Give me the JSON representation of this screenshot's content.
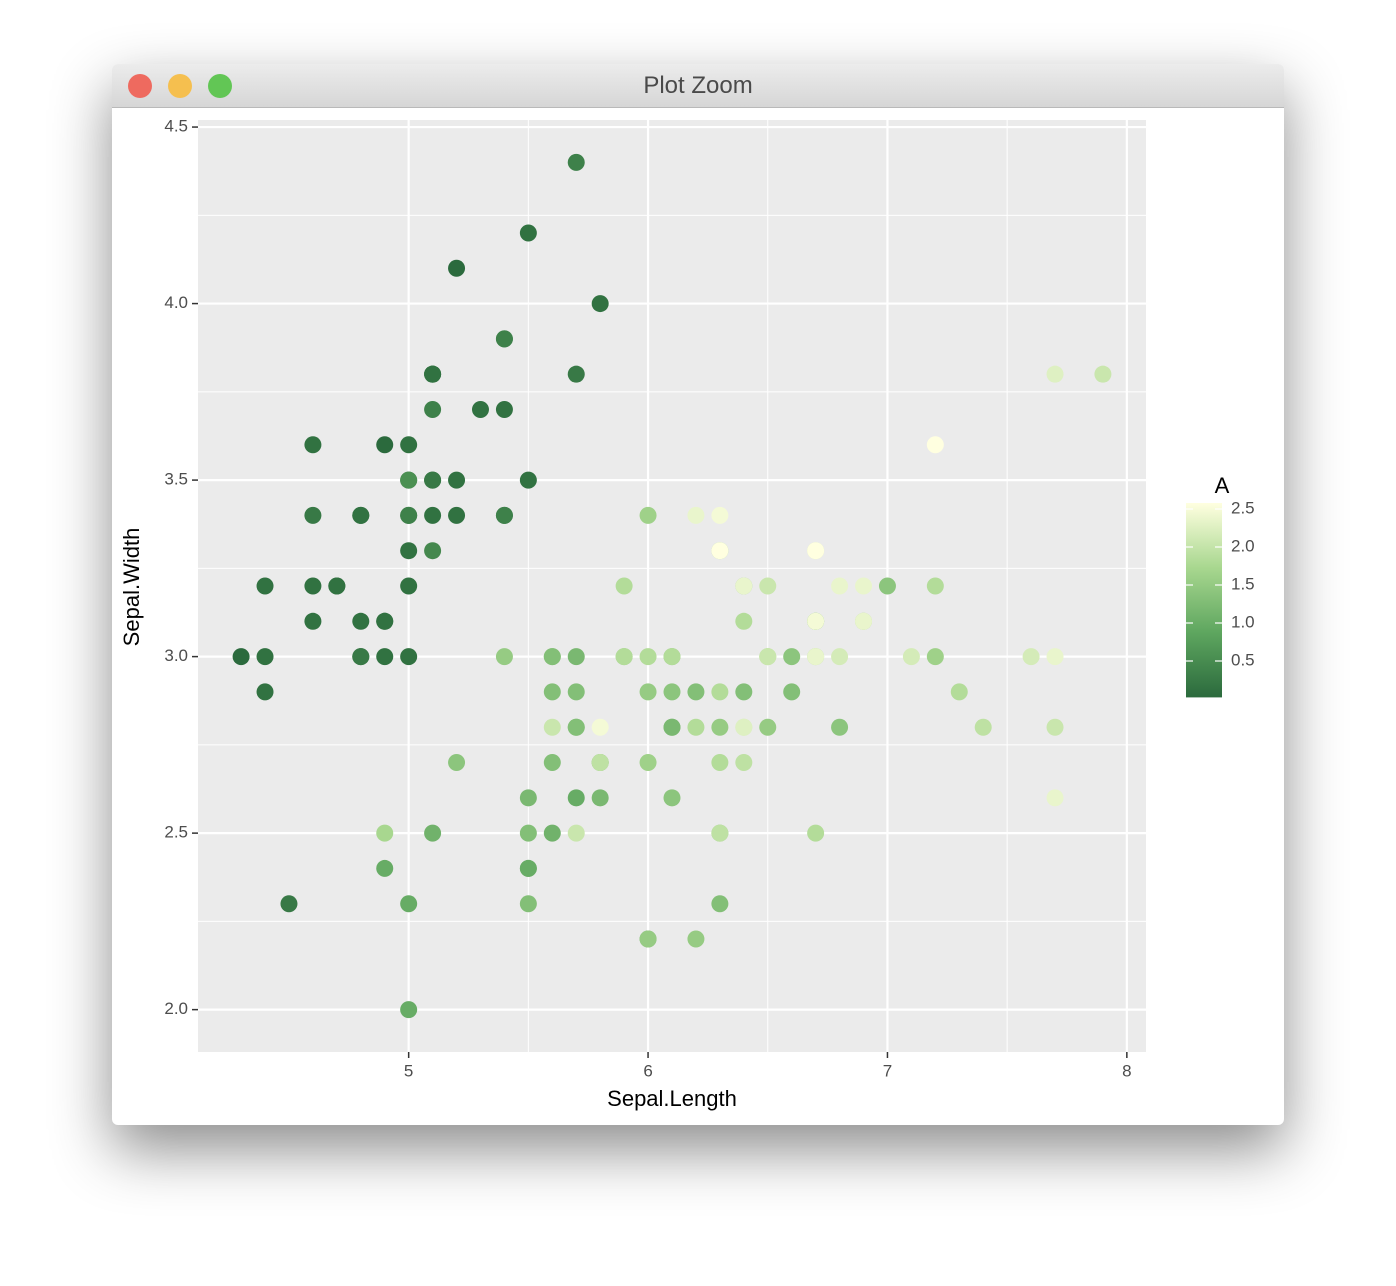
{
  "window": {
    "title": "Plot Zoom"
  },
  "chart_data": {
    "type": "scatter",
    "x_label": "Sepal.Length",
    "y_label": "Sepal.Width",
    "color_label": "A",
    "colorscale": [
      "#2b6a3d",
      "#5ea65f",
      "#a8d78f",
      "#ffffe0"
    ],
    "xlim": [
      4.12,
      8.08
    ],
    "ylim": [
      1.88,
      4.52
    ],
    "xticks": [
      5,
      6,
      7,
      8
    ],
    "yticks": [
      {
        "value": 2,
        "label": "2.0"
      },
      2.5,
      {
        "value": 3,
        "label": "3.0"
      },
      3.5,
      {
        "value": 4,
        "label": "4.0"
      },
      4.5
    ],
    "colorticks": [
      0.5,
      {
        "value": 1,
        "label": "1.0"
      },
      1.5,
      {
        "value": 2,
        "label": "2.0"
      },
      2.5
    ],
    "grid": true,
    "x": [
      5.1,
      4.9,
      4.7,
      4.6,
      5.0,
      5.4,
      4.6,
      5.0,
      4.4,
      4.9,
      5.4,
      4.8,
      4.8,
      4.3,
      5.8,
      5.7,
      5.4,
      5.1,
      5.7,
      5.1,
      5.4,
      5.1,
      4.6,
      5.1,
      4.8,
      5.0,
      5.0,
      5.2,
      5.2,
      4.7,
      4.8,
      5.4,
      5.2,
      5.5,
      4.9,
      5.0,
      5.5,
      4.9,
      4.4,
      5.1,
      5.0,
      4.5,
      4.4,
      5.0,
      5.1,
      4.8,
      5.1,
      4.6,
      5.3,
      5.0,
      7.0,
      6.4,
      6.9,
      5.5,
      6.5,
      5.7,
      6.3,
      4.9,
      6.6,
      5.2,
      5.0,
      5.9,
      6.0,
      6.1,
      5.6,
      6.7,
      5.6,
      5.8,
      6.2,
      5.6,
      5.9,
      6.1,
      6.3,
      6.1,
      6.4,
      6.6,
      6.8,
      6.7,
      6.0,
      5.7,
      5.5,
      5.5,
      5.8,
      6.0,
      5.4,
      6.0,
      6.7,
      6.3,
      5.6,
      5.5,
      5.5,
      6.1,
      5.8,
      5.0,
      5.6,
      5.7,
      5.7,
      6.2,
      5.1,
      5.7,
      6.3,
      5.8,
      7.1,
      6.3,
      6.5,
      7.6,
      4.9,
      7.3,
      6.7,
      7.2,
      6.5,
      6.4,
      6.8,
      5.7,
      5.8,
      6.4,
      6.5,
      7.7,
      7.7,
      6.0,
      6.9,
      5.6,
      7.7,
      6.3,
      6.7,
      7.2,
      6.2,
      6.1,
      6.4,
      7.2,
      7.4,
      7.9,
      6.4,
      6.3,
      6.1,
      7.7,
      6.3,
      6.4,
      6.0,
      6.9,
      6.7,
      6.9,
      5.8,
      6.8,
      6.7,
      6.7,
      6.3,
      6.5,
      6.2,
      5.9
    ],
    "values": [
      3.5,
      3.0,
      3.2,
      3.1,
      3.6,
      3.9,
      3.4,
      3.4,
      2.9,
      3.1,
      3.7,
      3.4,
      3.0,
      3.0,
      4.0,
      4.4,
      3.9,
      3.5,
      3.8,
      3.8,
      3.4,
      3.7,
      3.6,
      3.3,
      3.4,
      3.0,
      3.4,
      3.5,
      3.4,
      3.2,
      3.1,
      3.4,
      4.1,
      4.2,
      3.1,
      3.2,
      3.5,
      3.6,
      3.0,
      3.4,
      3.5,
      2.3,
      3.2,
      3.5,
      3.8,
      3.0,
      3.8,
      3.2,
      3.7,
      3.3,
      3.2,
      3.2,
      3.1,
      2.3,
      2.8,
      2.8,
      3.3,
      2.4,
      2.9,
      2.7,
      2.0,
      3.0,
      2.2,
      2.9,
      2.9,
      3.1,
      3.0,
      2.7,
      2.2,
      2.5,
      3.2,
      2.8,
      2.5,
      2.8,
      2.9,
      3.0,
      2.8,
      3.0,
      2.9,
      2.6,
      2.4,
      2.4,
      2.7,
      2.7,
      3.0,
      3.4,
      3.1,
      2.3,
      3.0,
      2.5,
      2.6,
      3.0,
      2.6,
      2.3,
      2.7,
      3.0,
      2.9,
      2.9,
      2.5,
      2.8,
      3.3,
      2.7,
      3.0,
      2.9,
      3.0,
      3.0,
      2.5,
      2.9,
      2.5,
      3.6,
      3.2,
      2.7,
      3.0,
      2.5,
      2.8,
      3.2,
      3.0,
      3.8,
      2.6,
      2.2,
      3.2,
      2.8,
      2.8,
      2.7,
      3.3,
      3.2,
      2.8,
      3.0,
      2.8,
      3.0,
      2.8,
      3.8,
      2.8,
      2.8,
      2.6,
      3.0,
      3.4,
      3.1,
      3.0,
      3.1,
      3.1,
      3.1,
      2.7,
      3.2,
      3.3,
      3.0,
      2.5,
      3.0,
      3.4,
      3.0
    ],
    "color_values": [
      0.2,
      0.2,
      0.2,
      0.2,
      0.2,
      0.4,
      0.3,
      0.2,
      0.2,
      0.1,
      0.2,
      0.2,
      0.1,
      0.1,
      0.2,
      0.4,
      0.4,
      0.3,
      0.3,
      0.3,
      0.2,
      0.4,
      0.2,
      0.5,
      0.2,
      0.2,
      0.4,
      0.2,
      0.2,
      0.2,
      0.2,
      0.4,
      0.1,
      0.2,
      0.2,
      0.2,
      0.2,
      0.1,
      0.2,
      0.2,
      0.3,
      0.3,
      0.2,
      0.6,
      0.4,
      0.3,
      0.2,
      0.2,
      0.2,
      0.2,
      1.4,
      1.5,
      1.5,
      1.3,
      1.5,
      1.3,
      1.6,
      1.0,
      1.3,
      1.4,
      1.0,
      1.5,
      1.0,
      1.4,
      1.3,
      1.4,
      1.5,
      1.0,
      1.5,
      1.1,
      1.8,
      1.3,
      1.5,
      1.2,
      1.3,
      1.4,
      1.4,
      1.7,
      1.5,
      1.0,
      1.1,
      1.0,
      1.2,
      1.6,
      1.5,
      1.6,
      1.5,
      1.3,
      1.3,
      1.3,
      1.2,
      1.4,
      1.2,
      1.0,
      1.3,
      1.2,
      1.3,
      1.3,
      1.1,
      1.3,
      2.5,
      1.9,
      2.1,
      1.8,
      2.2,
      2.1,
      1.7,
      1.8,
      1.8,
      2.5,
      2.0,
      1.9,
      2.1,
      2.0,
      2.4,
      2.3,
      1.8,
      2.2,
      2.3,
      1.5,
      2.3,
      2.0,
      2.0,
      1.8,
      2.1,
      1.8,
      1.8,
      1.8,
      2.1,
      1.6,
      1.9,
      2.0,
      2.2,
      1.5,
      1.4,
      2.3,
      2.4,
      1.8,
      1.8,
      2.1,
      2.4,
      2.3,
      1.9,
      2.3,
      2.5,
      2.3,
      1.9,
      2.0,
      2.3,
      1.8
    ]
  }
}
